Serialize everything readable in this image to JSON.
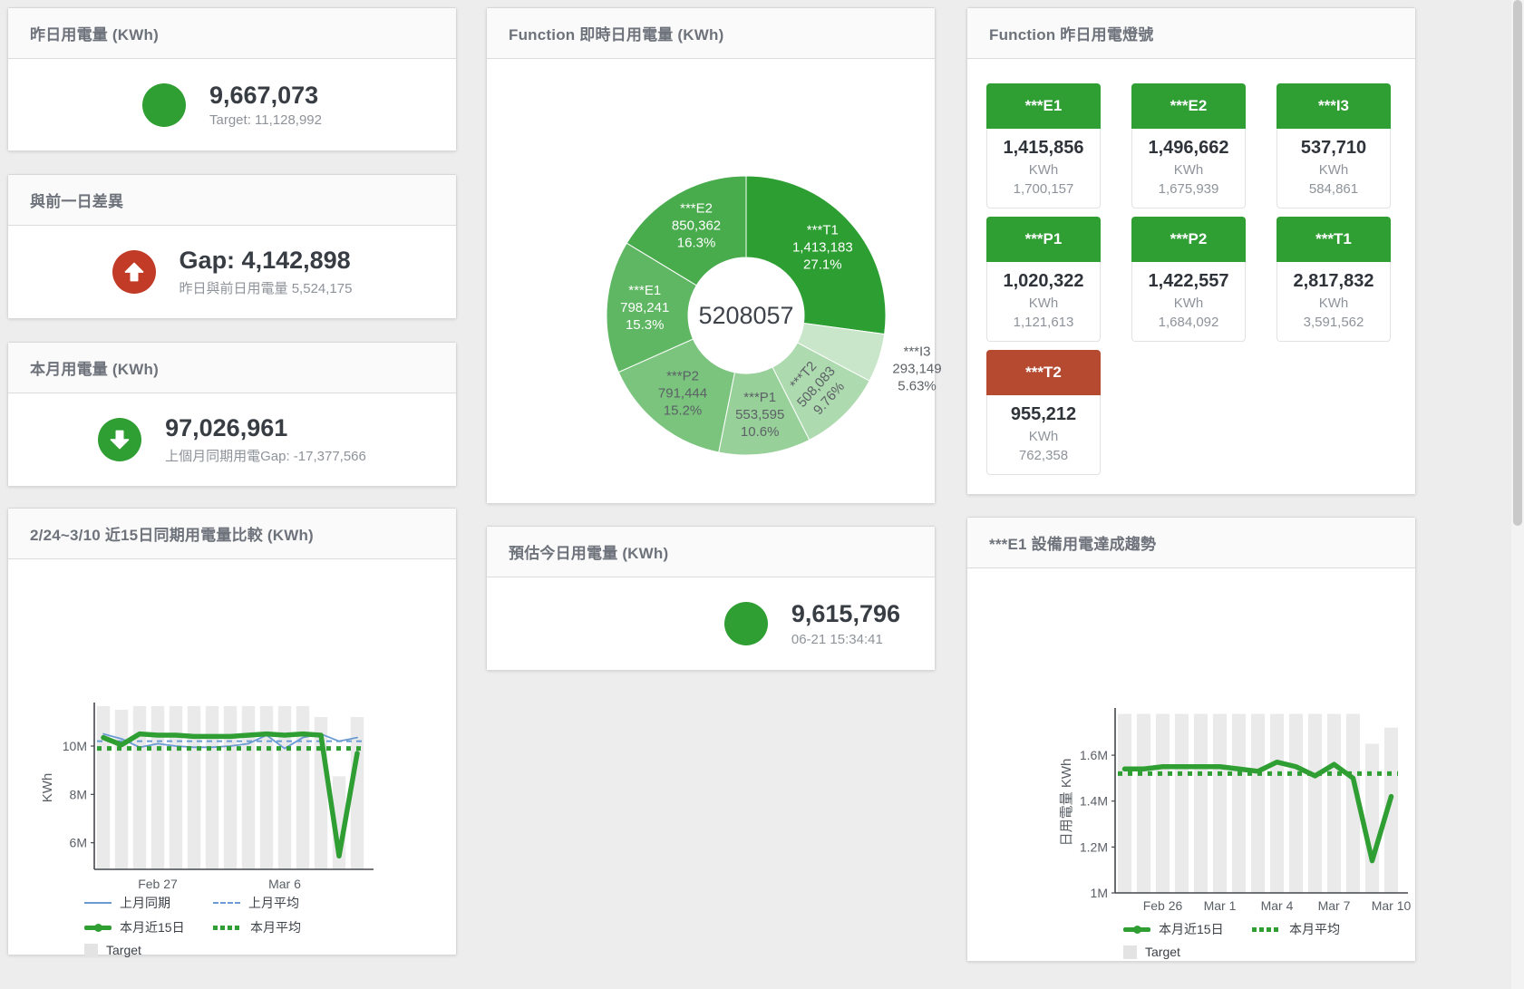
{
  "colors": {
    "green": "#2f9e33",
    "red": "#c23b26",
    "tile_red": "#b54a31",
    "blue": "#6b9bd2",
    "bar": "#eaeaea",
    "axis": "#43474c",
    "tick_text": "#5a5f66"
  },
  "panels": {
    "yesterday": {
      "title": "昨日用電量 (KWh)",
      "value": "9,667,073",
      "sub": "Target: 11,128,992"
    },
    "gap_prev_day": {
      "title": "與前一日差異",
      "value": "Gap: 4,142,898",
      "sub": "昨日與前日用電量 5,524,175"
    },
    "month": {
      "title": "本月用電量 (KWh)",
      "value": "97,026,961",
      "sub": "上個月同期用電Gap: -17,377,566"
    },
    "compare15": {
      "title": "2/24~3/10 近15日同期用電量比較 (KWh)"
    },
    "realtime_donut": {
      "title": "Function 即時日用電量 (KWh)"
    },
    "today_estimate": {
      "title": "預估今日用電量 (KWh)",
      "value": "9,615,796",
      "sub": "06-21 15:34:41"
    },
    "lights": {
      "title": "Function 昨日用電燈號"
    },
    "e1_trend": {
      "title": "***E1 設備用電達成趨勢"
    }
  },
  "tiles": [
    {
      "name": "***E1",
      "value": "1,415,856",
      "unit": "KWh",
      "target": "1,700,157",
      "status": "good"
    },
    {
      "name": "***E2",
      "value": "1,496,662",
      "unit": "KWh",
      "target": "1,675,939",
      "status": "good"
    },
    {
      "name": "***I3",
      "value": "537,710",
      "unit": "KWh",
      "target": "584,861",
      "status": "good"
    },
    {
      "name": "***P1",
      "value": "1,020,322",
      "unit": "KWh",
      "target": "1,121,613",
      "status": "good"
    },
    {
      "name": "***P2",
      "value": "1,422,557",
      "unit": "KWh",
      "target": "1,684,092",
      "status": "good"
    },
    {
      "name": "***T1",
      "value": "2,817,832",
      "unit": "KWh",
      "target": "3,591,562",
      "status": "good"
    },
    {
      "name": "***T2",
      "value": "955,212",
      "unit": "KWh",
      "target": "762,358",
      "status": "alert"
    }
  ],
  "chart_data": [
    {
      "type": "pie",
      "title": "Function 即時日用電量 (KWh)",
      "center_total": "5208057",
      "slices": [
        {
          "name": "***T1",
          "value": 1413183,
          "value_label": "1,413,183",
          "pct_label": "27.1%",
          "color": "#2d9e32",
          "text": "#ffffff"
        },
        {
          "name": "***I3",
          "value": 293149,
          "value_label": "293,149",
          "pct_label": "5.63%",
          "color": "#c9e6ca",
          "text": "#5c6166",
          "outside": true
        },
        {
          "name": "***T2",
          "value": 508083,
          "value_label": "508,083",
          "pct_label": "9.76%",
          "color": "#aedaaf",
          "text": "#5c6166",
          "rotate": -48
        },
        {
          "name": "***P1",
          "value": 553595,
          "value_label": "553,595",
          "pct_label": "10.6%",
          "color": "#98d09a",
          "text": "#5c6166"
        },
        {
          "name": "***P2",
          "value": 791444,
          "value_label": "791,444",
          "pct_label": "15.2%",
          "color": "#7ac47e",
          "text": "#5c6166"
        },
        {
          "name": "***E1",
          "value": 798241,
          "value_label": "798,241",
          "pct_label": "15.3%",
          "color": "#5fb763",
          "text": "#ffffff"
        },
        {
          "name": "***E2",
          "value": 850362,
          "value_label": "850,362",
          "pct_label": "16.3%",
          "color": "#48ab4c",
          "text": "#ffffff"
        }
      ]
    },
    {
      "type": "line+bar",
      "title": "2/24~3/10 近15日同期用電量比較 (KWh)",
      "ylabel": "KWh",
      "ylim": [
        4.9,
        11.65
      ],
      "yticks": [
        {
          "v": 6,
          "label": "6M"
        },
        {
          "v": 8,
          "label": "8M"
        },
        {
          "v": 10,
          "label": "10M"
        }
      ],
      "categories": [
        "Feb 24",
        "Feb 25",
        "Feb 26",
        "Feb 27",
        "Feb 28",
        "Mar 1",
        "Mar 2",
        "Mar 3",
        "Mar 4",
        "Mar 5",
        "Mar 6",
        "Mar 7",
        "Mar 8",
        "Mar 9",
        "Mar 10"
      ],
      "xticks": [
        {
          "i": 3,
          "label": "Feb 27"
        },
        {
          "i": 10,
          "label": "Mar 6"
        }
      ],
      "target_bars": [
        11.65,
        11.5,
        11.65,
        11.65,
        11.65,
        11.65,
        11.65,
        11.65,
        11.65,
        11.65,
        11.65,
        11.65,
        11.2,
        8.75,
        11.2
      ],
      "series": [
        {
          "name": "上月同期",
          "type": "line",
          "color": "#6b9bd2",
          "width": 1.8,
          "values": [
            10.5,
            10.3,
            9.95,
            10.1,
            10.0,
            9.95,
            9.95,
            10.0,
            10.1,
            10.45,
            9.9,
            10.35,
            10.5,
            10.2,
            10.35
          ]
        },
        {
          "name": "上月平均",
          "type": "avg",
          "style": "dashed",
          "color": "#6b9bd2",
          "value": 10.2
        },
        {
          "name": "本月平均",
          "type": "avg",
          "style": "dotted",
          "color": "#2f9e33",
          "value": 9.9
        },
        {
          "name": "本月近15日",
          "type": "line",
          "color": "#2f9e33",
          "width": 5.5,
          "values": [
            10.35,
            10.05,
            10.5,
            10.45,
            10.45,
            10.4,
            10.4,
            10.4,
            10.45,
            10.5,
            10.45,
            10.5,
            10.45,
            5.45,
            9.7
          ]
        }
      ],
      "legend": [
        [
          {
            "label": "上月同期",
            "marker": "line",
            "color": "#6b9bd2"
          },
          {
            "label": "上月平均",
            "marker": "dashed",
            "color": "#6b9bd2"
          }
        ],
        [
          {
            "label": "本月近15日",
            "marker": "thick",
            "color": "#2f9e33"
          },
          {
            "label": "本月平均",
            "marker": "dotted",
            "color": "#2f9e33"
          }
        ],
        [
          {
            "label": "Target",
            "marker": "square",
            "color": "#e3e3e3"
          }
        ]
      ]
    },
    {
      "type": "line+bar",
      "title": "***E1 設備用電達成趨勢",
      "ylabel": "日用電量 KWh",
      "ylim": [
        1.0,
        1.79
      ],
      "yticks": [
        {
          "v": 1.0,
          "label": "1M"
        },
        {
          "v": 1.2,
          "label": "1.2M"
        },
        {
          "v": 1.4,
          "label": "1.4M"
        },
        {
          "v": 1.6,
          "label": "1.6M"
        }
      ],
      "categories": [
        "Feb 24",
        "Feb 25",
        "Feb 26",
        "Feb 27",
        "Feb 28",
        "Mar 1",
        "Mar 2",
        "Mar 3",
        "Mar 4",
        "Mar 5",
        "Mar 6",
        "Mar 7",
        "Mar 8",
        "Mar 9",
        "Mar 10"
      ],
      "xticks": [
        {
          "i": 2,
          "label": "Feb 26"
        },
        {
          "i": 5,
          "label": "Mar 1"
        },
        {
          "i": 8,
          "label": "Mar 4"
        },
        {
          "i": 11,
          "label": "Mar 7"
        },
        {
          "i": 14,
          "label": "Mar 10"
        }
      ],
      "target_bars": [
        1.78,
        1.78,
        1.78,
        1.78,
        1.78,
        1.78,
        1.78,
        1.78,
        1.78,
        1.78,
        1.78,
        1.78,
        1.78,
        1.65,
        1.72
      ],
      "series": [
        {
          "name": "本月平均",
          "type": "avg",
          "style": "dotted",
          "color": "#2f9e33",
          "value": 1.52
        },
        {
          "name": "本月近15日",
          "type": "line",
          "color": "#2f9e33",
          "width": 5.5,
          "values": [
            1.54,
            1.54,
            1.55,
            1.55,
            1.55,
            1.55,
            1.54,
            1.53,
            1.57,
            1.55,
            1.51,
            1.56,
            1.5,
            1.14,
            1.42
          ]
        }
      ],
      "legend": [
        [
          {
            "label": "本月近15日",
            "marker": "thick",
            "color": "#2f9e33"
          },
          {
            "label": "本月平均",
            "marker": "dotted",
            "color": "#2f9e33"
          }
        ],
        [
          {
            "label": "Target",
            "marker": "square",
            "color": "#e3e3e3"
          }
        ]
      ]
    }
  ]
}
